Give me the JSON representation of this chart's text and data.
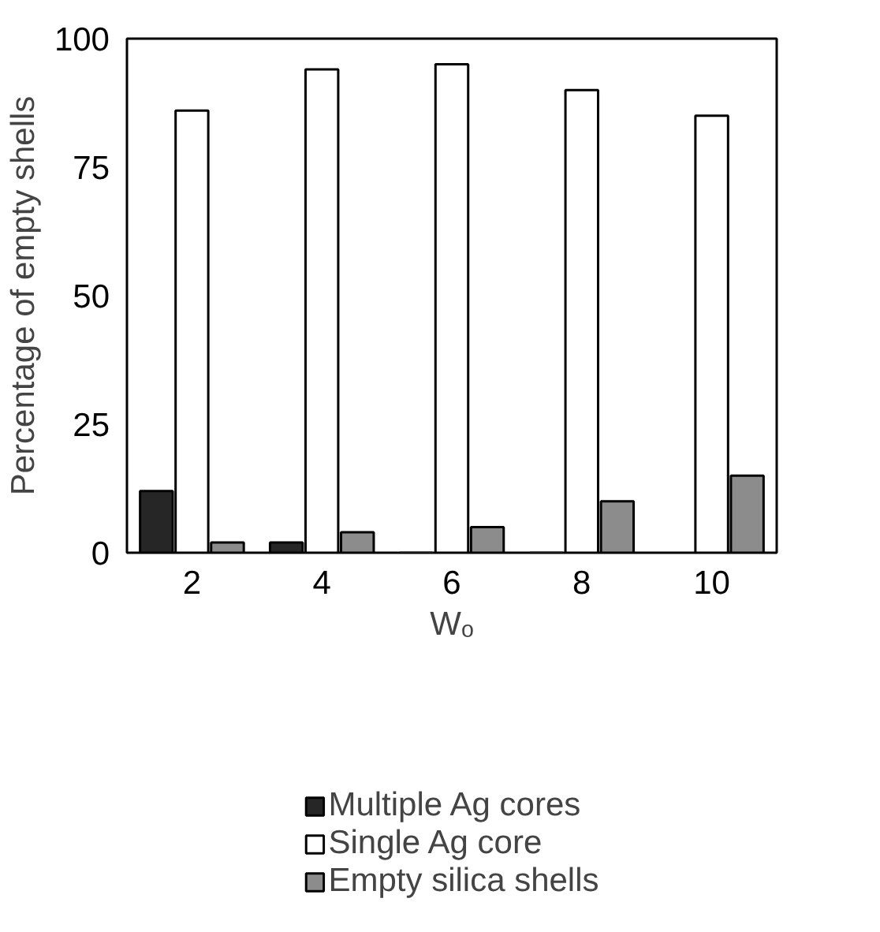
{
  "chart_data": {
    "type": "bar",
    "xlabel": "Wₒ",
    "ylabel": "Percentage of empty shells",
    "categories": [
      "2",
      "4",
      "6",
      "8",
      "10"
    ],
    "series": [
      {
        "name": "Multiple Ag cores",
        "color": "#262626",
        "values": [
          12,
          2,
          0,
          0,
          null
        ]
      },
      {
        "name": "Single Ag core",
        "color": "#ffffff",
        "values": [
          86,
          94,
          95,
          90,
          85
        ]
      },
      {
        "name": "Empty silica shells",
        "color": "#8c8c8c",
        "values": [
          2,
          4,
          5,
          10,
          15
        ]
      }
    ],
    "ylim": [
      0,
      100
    ],
    "yticks": [
      0,
      25,
      50,
      75,
      100
    ],
    "grid": false,
    "legend": "bottom"
  }
}
